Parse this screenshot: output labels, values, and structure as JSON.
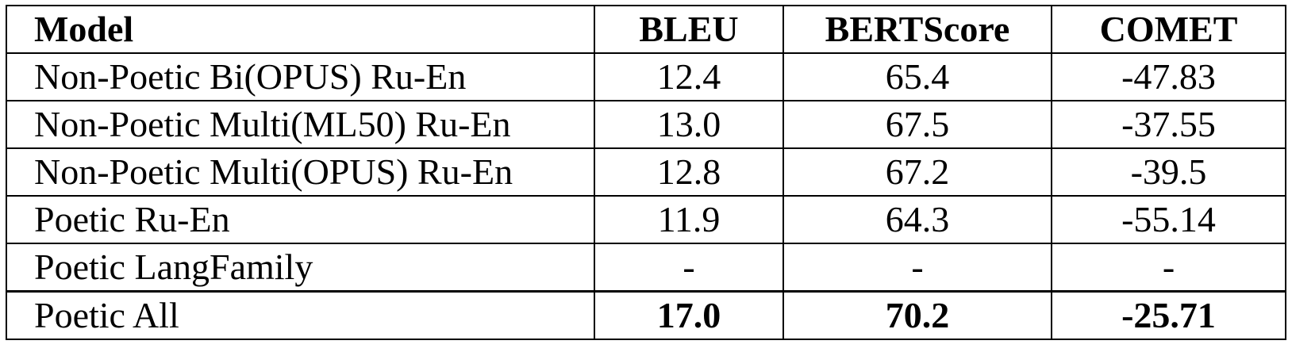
{
  "table": {
    "headers": [
      "Model",
      "BLEU",
      "BERTScore",
      "COMET"
    ],
    "rows": [
      {
        "model": "Non-Poetic Bi(OPUS) Ru-En",
        "bleu": "12.4",
        "bertscore": "65.4",
        "comet": "-47.83",
        "bold": false
      },
      {
        "model": "Non-Poetic Multi(ML50) Ru-En",
        "bleu": "13.0",
        "bertscore": "67.5",
        "comet": "-37.55",
        "bold": false
      },
      {
        "model": "Non-Poetic Multi(OPUS) Ru-En",
        "bleu": "12.8",
        "bertscore": "67.2",
        "comet": "-39.5",
        "bold": false
      },
      {
        "model": "Poetic Ru-En",
        "bleu": "11.9",
        "bertscore": "64.3",
        "comet": "-55.14",
        "bold": false
      },
      {
        "model": "Poetic LangFamily",
        "bleu": "-",
        "bertscore": "-",
        "comet": "-",
        "bold": false
      },
      {
        "model": "Poetic All",
        "bleu": "17.0",
        "bertscore": "70.2",
        "comet": "-25.71",
        "bold": true
      }
    ]
  }
}
